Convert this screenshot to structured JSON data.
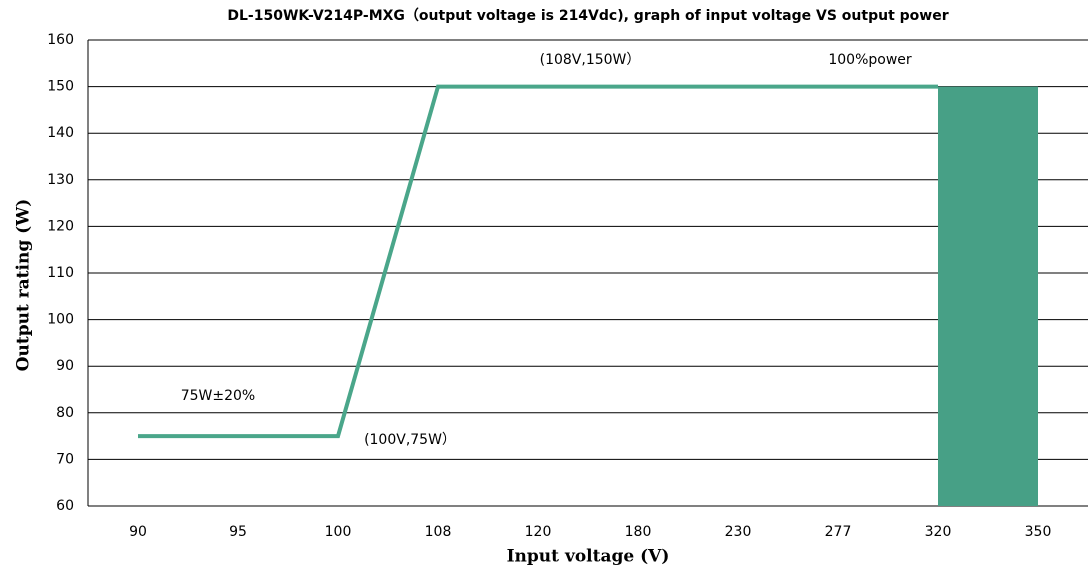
{
  "chart_data": {
    "type": "line",
    "title": "DL-150WK-V214P-MXG（output voltage is 214Vdc), graph of input voltage VS output power",
    "x_label": "Input voltage (V)",
    "y_label": "Output rating (W)",
    "categories": [
      "90",
      "95",
      "100",
      "108",
      "120",
      "180",
      "230",
      "277",
      "320",
      "350"
    ],
    "series": [
      {
        "color": "#4aa68a",
        "values": [
          75,
          75,
          75,
          150,
          150,
          150,
          150,
          150,
          150,
          null
        ]
      },
      {
        "color": "#47a086",
        "kind": "area",
        "values": [
          null,
          null,
          null,
          null,
          null,
          null,
          null,
          null,
          150,
          150
        ]
      }
    ],
    "ylim": [
      60,
      160
    ],
    "yticks": [
      60,
      70,
      80,
      90,
      100,
      110,
      120,
      130,
      140,
      150,
      160
    ],
    "grid": true,
    "annotations": [
      "(108V,150W）",
      "100%power",
      "75W±20%",
      "(100V,75W）"
    ]
  }
}
